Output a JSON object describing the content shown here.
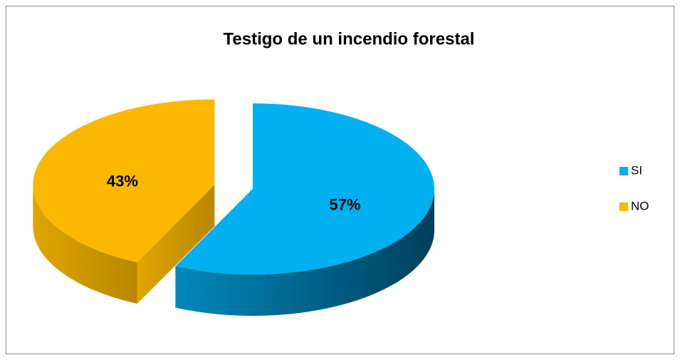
{
  "chart_data": {
    "type": "pie",
    "title": "Testigo de un incendio forestal",
    "categories": [
      "SI",
      "NO"
    ],
    "values": [
      57,
      43
    ],
    "value_labels": [
      "57%",
      "43%"
    ],
    "colors": [
      "#00b0f0",
      "#fab900"
    ],
    "legend": "right"
  }
}
